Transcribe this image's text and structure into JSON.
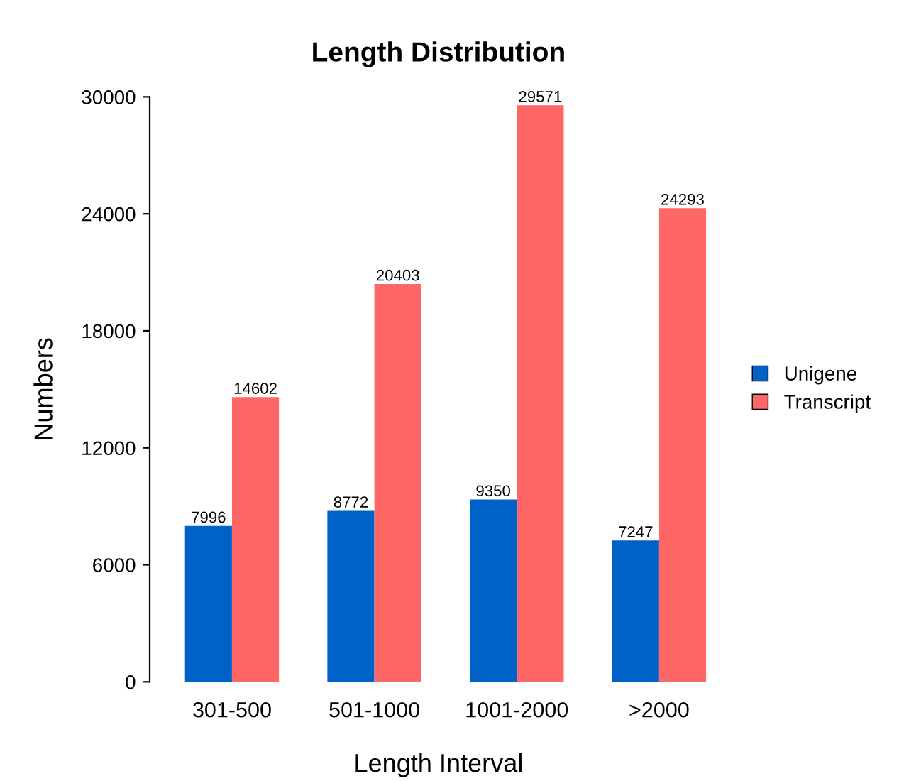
{
  "chart_data": {
    "type": "bar",
    "title": "Length Distribution",
    "xlabel": "Length Interval",
    "ylabel": "Numbers",
    "categories": [
      "301-500",
      "501-1000",
      "1001-2000",
      ">2000"
    ],
    "series": [
      {
        "name": "Unigene",
        "color": "#0062c8",
        "values": [
          7996,
          8772,
          9350,
          7247
        ]
      },
      {
        "name": "Transcript",
        "color": "#ff6666",
        "values": [
          14602,
          20403,
          29571,
          24293
        ]
      }
    ],
    "ylim": [
      0,
      30000
    ],
    "yticks": [
      0,
      6000,
      12000,
      18000,
      24000,
      30000
    ],
    "grid": false,
    "legend": "right",
    "data_labels": true
  }
}
